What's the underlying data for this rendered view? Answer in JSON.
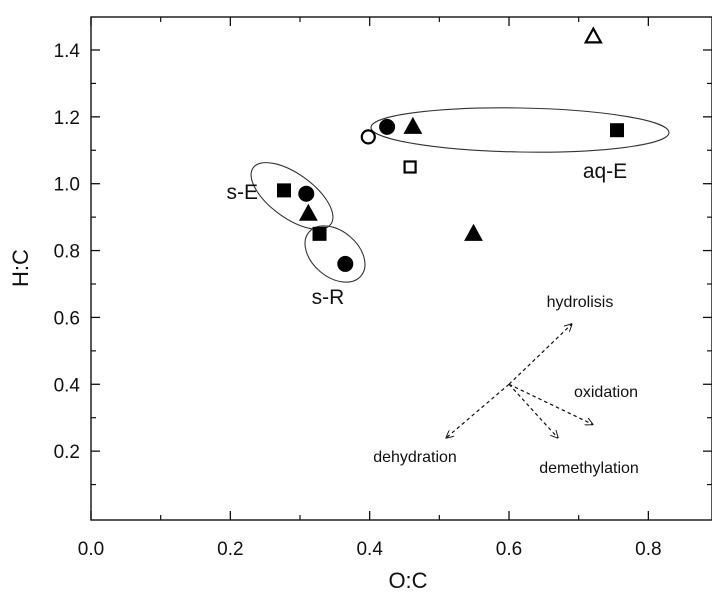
{
  "chart_data": {
    "type": "scatter",
    "title": "",
    "xlabel": "O:C",
    "ylabel": "H:C",
    "xlim": [
      0.0,
      0.9
    ],
    "ylim": [
      0.0,
      1.5
    ],
    "xticks": [
      0.0,
      0.2,
      0.4,
      0.6,
      0.8
    ],
    "xtick_labels": [
      "0.0",
      "0.2",
      "0.4",
      "0.6",
      "0.8"
    ],
    "yticks": [
      0.2,
      0.4,
      0.6,
      0.8,
      1.0,
      1.2,
      1.4
    ],
    "ytick_labels": [
      "0.2",
      "0.4",
      "0.6",
      "0.8",
      "1.0",
      "1.2",
      "1.4"
    ],
    "grid": false,
    "legend": "none",
    "series": [
      {
        "marker": "filled-square",
        "points": [
          {
            "x": 0.277,
            "y": 0.98
          },
          {
            "x": 0.328,
            "y": 0.85
          },
          {
            "x": 0.755,
            "y": 1.16
          }
        ]
      },
      {
        "marker": "filled-circle",
        "points": [
          {
            "x": 0.309,
            "y": 0.97
          },
          {
            "x": 0.365,
            "y": 0.76
          },
          {
            "x": 0.425,
            "y": 1.17
          }
        ]
      },
      {
        "marker": "filled-triangle",
        "points": [
          {
            "x": 0.312,
            "y": 0.91
          },
          {
            "x": 0.462,
            "y": 1.17
          },
          {
            "x": 0.549,
            "y": 0.85
          }
        ]
      },
      {
        "marker": "open-square",
        "points": [
          {
            "x": 0.458,
            "y": 1.05
          }
        ]
      },
      {
        "marker": "open-circle",
        "points": [
          {
            "x": 0.398,
            "y": 1.14
          }
        ]
      },
      {
        "marker": "open-triangle",
        "points": [
          {
            "x": 0.721,
            "y": 1.44
          }
        ]
      }
    ],
    "groups": [
      {
        "label": "s-E"
      },
      {
        "label": "s-R"
      },
      {
        "label": "aq-E"
      }
    ],
    "arrows": [
      {
        "label": "hydrolisis",
        "from": {
          "x": 0.6,
          "y": 0.4
        },
        "to": {
          "x": 0.69,
          "y": 0.58
        }
      },
      {
        "label": "oxidation",
        "from": {
          "x": 0.6,
          "y": 0.4
        },
        "to": {
          "x": 0.72,
          "y": 0.28
        }
      },
      {
        "label": "demethylation",
        "from": {
          "x": 0.6,
          "y": 0.4
        },
        "to": {
          "x": 0.67,
          "y": 0.24
        }
      },
      {
        "label": "dehydration",
        "from": {
          "x": 0.6,
          "y": 0.4
        },
        "to": {
          "x": 0.51,
          "y": 0.24
        }
      }
    ]
  }
}
